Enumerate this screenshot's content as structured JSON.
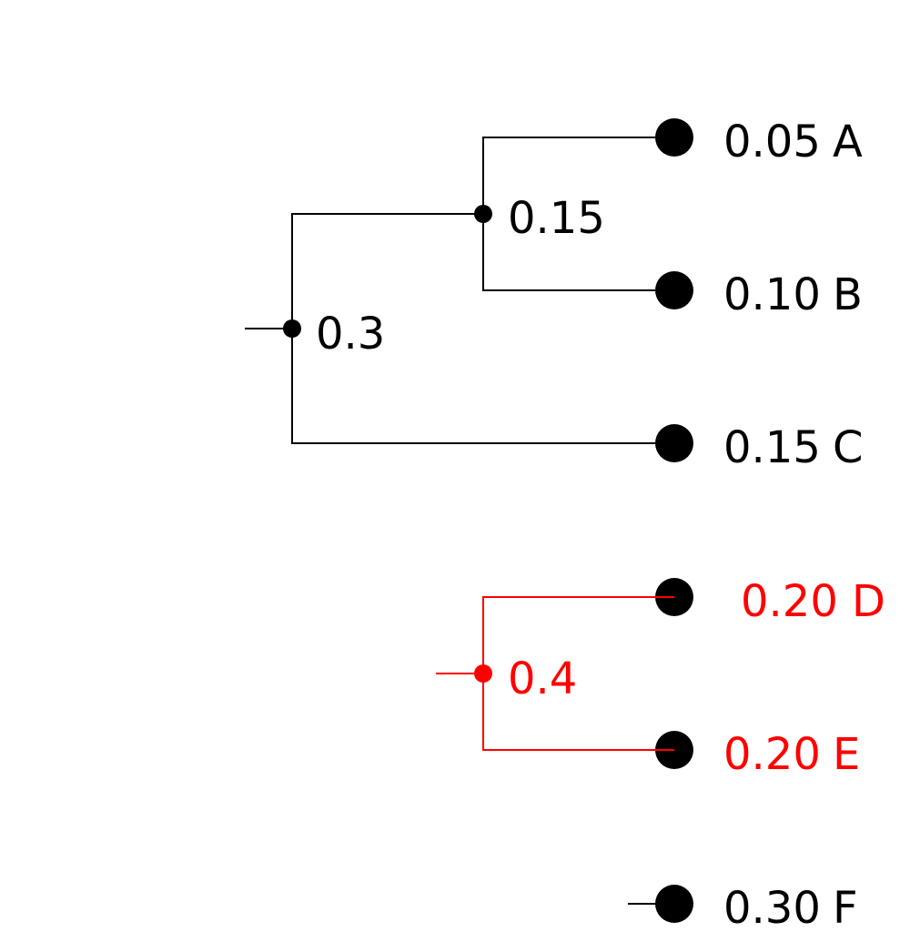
{
  "colors": {
    "default": "#000000",
    "highlight": "#ff0000"
  },
  "tree": {
    "leaves": [
      {
        "id": "A",
        "label": "A",
        "prob": "0.05",
        "highlighted": false
      },
      {
        "id": "B",
        "label": "B",
        "prob": "0.10",
        "highlighted": false
      },
      {
        "id": "C",
        "label": "C",
        "prob": "0.15",
        "highlighted": false
      },
      {
        "id": "D",
        "label": "D",
        "prob": "0.20",
        "highlighted": true
      },
      {
        "id": "E",
        "label": "E",
        "prob": "0.20",
        "highlighted": true
      },
      {
        "id": "F",
        "label": "F",
        "prob": "0.30",
        "highlighted": false
      }
    ],
    "internal_nodes": [
      {
        "id": "AB",
        "value": "0.15",
        "children": [
          "A",
          "B"
        ],
        "highlighted": false
      },
      {
        "id": "ABC",
        "value": "0.3",
        "children": [
          "AB",
          "C"
        ],
        "highlighted": false
      },
      {
        "id": "DE",
        "value": "0.4",
        "children": [
          "D",
          "E"
        ],
        "highlighted": true
      }
    ]
  }
}
